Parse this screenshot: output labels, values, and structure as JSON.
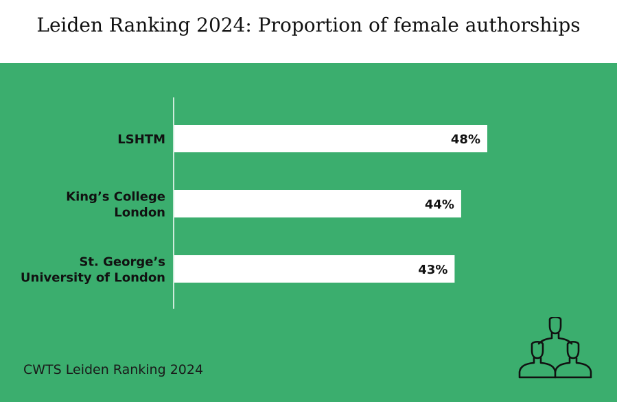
{
  "header": {
    "title": "Leiden Ranking 2024: Proportion of female authorships"
  },
  "footer": {
    "source": "CWTS Leiden Ranking 2024"
  },
  "icons": {
    "decoration": "people-group-icon"
  },
  "colors": {
    "background": "#3bae6e",
    "bar": "#ffffff",
    "text": "#111111"
  },
  "chart_data": {
    "type": "bar",
    "orientation": "horizontal",
    "title": "Leiden Ranking 2024: Proportion of female authorships",
    "xlabel": "",
    "ylabel": "",
    "unit": "%",
    "xlim": [
      0,
      57
    ],
    "grid": false,
    "categories": [
      "LSHTM",
      "King's College London",
      "St. George's University of London"
    ],
    "category_label_lines": [
      [
        "LSHTM"
      ],
      [
        "King’s College",
        "London"
      ],
      [
        "St. George’s",
        "University of London"
      ]
    ],
    "values": [
      48,
      44,
      43
    ],
    "data_labels": [
      "48%",
      "44%",
      "43%"
    ]
  }
}
